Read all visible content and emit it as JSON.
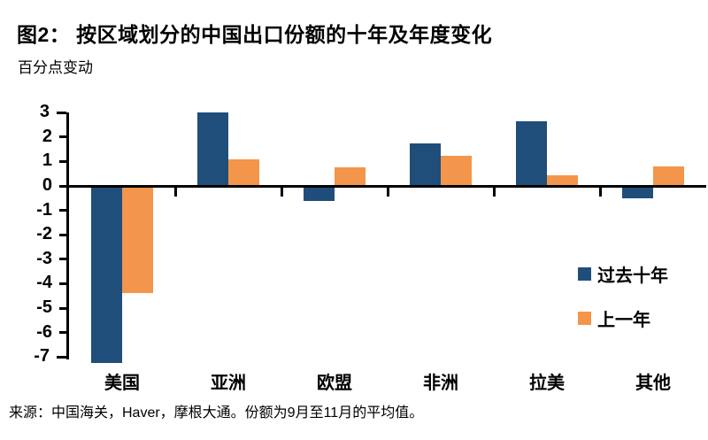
{
  "header": {
    "title": "图2：  按区域划分的中国出口份额的十年及年度变化",
    "subtitle": "百分点变动"
  },
  "footer": {
    "source": "来源：中国海关，Haver，摩根大通。份额为9月至11月的平均值。"
  },
  "chart_data": {
    "type": "bar",
    "title": "图2：  按区域划分的中国出口份额的十年及年度变化",
    "subtitle": "百分点变动",
    "categories": [
      "美国",
      "亚洲",
      "欧盟",
      "非洲",
      "拉美",
      "其他"
    ],
    "series": [
      {
        "name": "过去十年",
        "color": "#1F4E7B",
        "values": [
          -7.25,
          3.0,
          -0.6,
          1.75,
          2.65,
          -0.5
        ]
      },
      {
        "name": "上一年",
        "color": "#F3954A",
        "values": [
          -4.4,
          1.1,
          0.75,
          1.25,
          0.45,
          0.8
        ]
      }
    ],
    "ylabel": "百分点变动",
    "yticks": [
      3,
      2,
      1,
      0,
      -1,
      -2,
      -3,
      -4,
      -5,
      -6,
      -7
    ],
    "ylim": [
      -7,
      3
    ],
    "grid": false,
    "legend_position": "right-middle",
    "axis_color": "#000000",
    "background_color": "#FFFFFF"
  }
}
